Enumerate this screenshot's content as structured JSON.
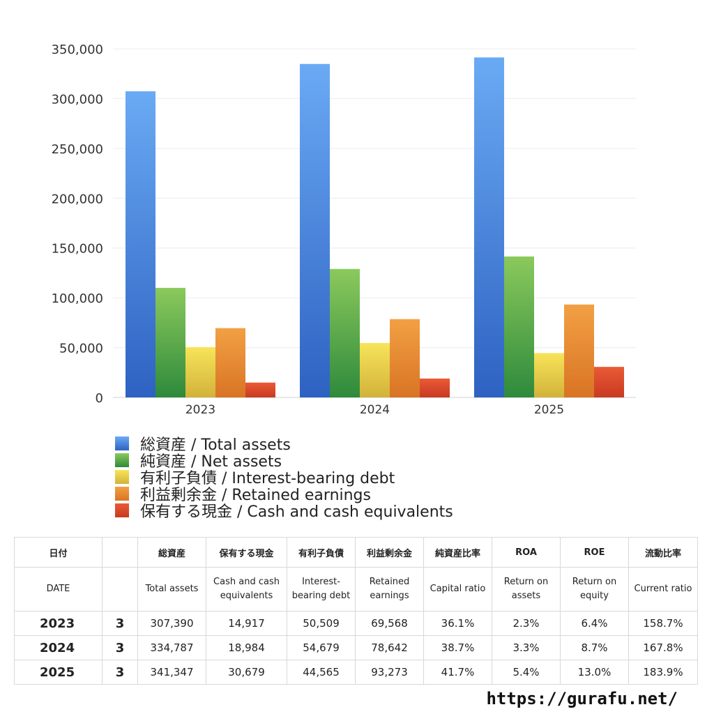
{
  "chart_data": {
    "type": "bar",
    "categories": [
      "2023",
      "2024",
      "2025"
    ],
    "ylim": [
      0,
      350000
    ],
    "yticks": [
      0,
      50000,
      100000,
      150000,
      200000,
      250000,
      300000,
      350000
    ],
    "grid": true,
    "legend_position": "bottom",
    "series": [
      {
        "name": "総資産 / Total assets",
        "values": [
          307390,
          334787,
          341347
        ],
        "color_top": "#6aaaf4",
        "color_bottom": "#2e62c2"
      },
      {
        "name": "純資産 / Net assets",
        "values": [
          110000,
          129000,
          141500
        ],
        "color_top": "#8bc95c",
        "color_bottom": "#2e8a3c"
      },
      {
        "name": "有利子負債 / Interest-bearing debt",
        "values": [
          50509,
          54679,
          44565
        ],
        "color_top": "#f7e45a",
        "color_bottom": "#d2b23a"
      },
      {
        "name": "利益剰余金 / Retained earnings",
        "values": [
          69568,
          78642,
          93273
        ],
        "color_top": "#f2a044",
        "color_bottom": "#d97424"
      },
      {
        "name": "保有する現金 /  Cash and cash equivalents",
        "values": [
          14917,
          18984,
          30679
        ],
        "color_top": "#ea5a36",
        "color_bottom": "#c83a22"
      }
    ]
  },
  "table": {
    "header_jp": [
      "日付",
      "",
      "総資産",
      "保有する現金",
      "有利子負債",
      "利益剰余金",
      "純資産比率",
      "ROA",
      "ROE",
      "流動比率"
    ],
    "header_en": [
      "DATE",
      "",
      "Total assets",
      "Cash and cash equivalents",
      "Interest-bearing debt",
      "Retained earnings",
      "Capital ratio",
      "Return on assets",
      "Return on equity",
      "Current ratio"
    ],
    "rows": [
      [
        "2023",
        "3",
        "307,390",
        "14,917",
        "50,509",
        "69,568",
        "36.1%",
        "2.3%",
        "6.4%",
        "158.7%"
      ],
      [
        "2024",
        "3",
        "334,787",
        "18,984",
        "54,679",
        "78,642",
        "38.7%",
        "3.3%",
        "8.7%",
        "167.8%"
      ],
      [
        "2025",
        "3",
        "341,347",
        "30,679",
        "44,565",
        "93,273",
        "41.7%",
        "5.4%",
        "13.0%",
        "183.9%"
      ]
    ]
  },
  "footer": {
    "url": "https://gurafu.net/"
  }
}
